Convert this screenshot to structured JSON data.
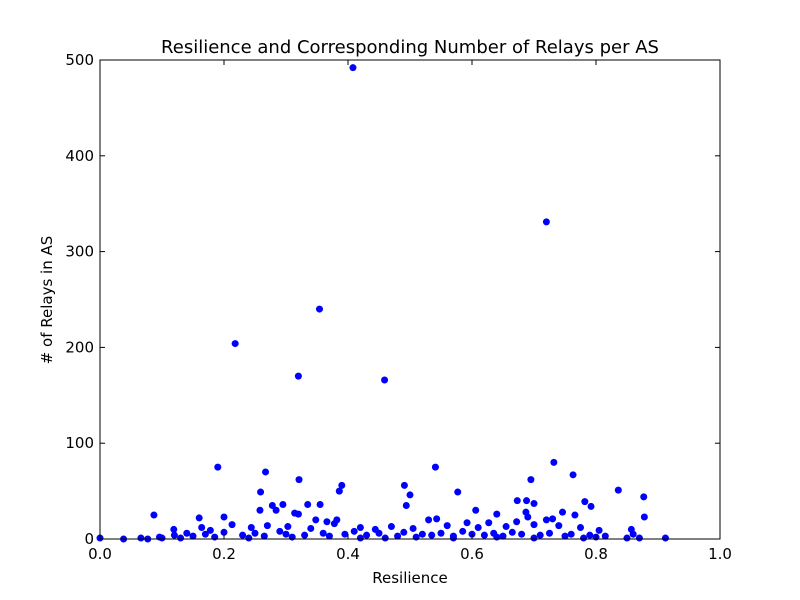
{
  "chart_data": {
    "type": "scatter",
    "title": "Resilience and Corresponding Number of Relays per AS",
    "xlabel": "Resilience",
    "ylabel": "# of Relays in AS",
    "xlim": [
      0.0,
      1.0
    ],
    "ylim": [
      0,
      500
    ],
    "xticks": [
      "0.0",
      "0.2",
      "0.4",
      "0.6",
      "0.8",
      "1.0"
    ],
    "yticks": [
      "0",
      "100",
      "200",
      "300",
      "400",
      "500"
    ],
    "grid": false,
    "marker_color": "#0000ff",
    "series": [
      {
        "points": [
          [
            0.408,
            492
          ],
          [
            0.72,
            331
          ],
          [
            0.354,
            240
          ],
          [
            0.218,
            204
          ],
          [
            0.32,
            170
          ],
          [
            0.459,
            166
          ],
          [
            0.19,
            75
          ],
          [
            0.541,
            75
          ],
          [
            0.732,
            80
          ],
          [
            0.267,
            70
          ],
          [
            0.763,
            67
          ],
          [
            0.321,
            62
          ],
          [
            0.695,
            62
          ],
          [
            0.39,
            56
          ],
          [
            0.491,
            56
          ],
          [
            0.386,
            50
          ],
          [
            0.259,
            49
          ],
          [
            0.577,
            49
          ],
          [
            0.836,
            51
          ],
          [
            0.5,
            46
          ],
          [
            0.877,
            44
          ],
          [
            0.782,
            39
          ],
          [
            0.673,
            40
          ],
          [
            0.688,
            40
          ],
          [
            0.7,
            37
          ],
          [
            0.335,
            36
          ],
          [
            0.355,
            36
          ],
          [
            0.278,
            35
          ],
          [
            0.295,
            36
          ],
          [
            0.494,
            35
          ],
          [
            0.792,
            34
          ],
          [
            0.284,
            30
          ],
          [
            0.606,
            30
          ],
          [
            0.687,
            28
          ],
          [
            0.087,
            25
          ],
          [
            0.2,
            23
          ],
          [
            0.16,
            22
          ],
          [
            0.32,
            26
          ],
          [
            0.314,
            27
          ],
          [
            0.258,
            30
          ],
          [
            0.543,
            21
          ],
          [
            0.53,
            20
          ],
          [
            0.382,
            20
          ],
          [
            0.366,
            18
          ],
          [
            0.348,
            20
          ],
          [
            0.746,
            28
          ],
          [
            0.64,
            26
          ],
          [
            0.766,
            25
          ],
          [
            0.878,
            23
          ],
          [
            0.72,
            20
          ],
          [
            0.69,
            23
          ],
          [
            0.672,
            18
          ],
          [
            0.73,
            21
          ],
          [
            0.592,
            17
          ],
          [
            0.627,
            17
          ],
          [
            0.213,
            15
          ],
          [
            0.164,
            12
          ],
          [
            0.119,
            10
          ],
          [
            0.178,
            9
          ],
          [
            0.244,
            12
          ],
          [
            0.27,
            14
          ],
          [
            0.303,
            13
          ],
          [
            0.34,
            11
          ],
          [
            0.378,
            16
          ],
          [
            0.42,
            12
          ],
          [
            0.444,
            10
          ],
          [
            0.47,
            13
          ],
          [
            0.505,
            11
          ],
          [
            0.56,
            14
          ],
          [
            0.61,
            12
          ],
          [
            0.655,
            13
          ],
          [
            0.7,
            15
          ],
          [
            0.74,
            14
          ],
          [
            0.775,
            12
          ],
          [
            0.805,
            9
          ],
          [
            0.857,
            10
          ],
          [
            0.096,
            2
          ],
          [
            0.12,
            4
          ],
          [
            0.14,
            6
          ],
          [
            0.15,
            3
          ],
          [
            0.17,
            5
          ],
          [
            0.185,
            2
          ],
          [
            0.2,
            7
          ],
          [
            0.23,
            4
          ],
          [
            0.25,
            6
          ],
          [
            0.265,
            3
          ],
          [
            0.29,
            8
          ],
          [
            0.3,
            5
          ],
          [
            0.33,
            4
          ],
          [
            0.36,
            6
          ],
          [
            0.37,
            3
          ],
          [
            0.395,
            5
          ],
          [
            0.41,
            8
          ],
          [
            0.43,
            4
          ],
          [
            0.45,
            6
          ],
          [
            0.48,
            3
          ],
          [
            0.49,
            7
          ],
          [
            0.52,
            5
          ],
          [
            0.535,
            4
          ],
          [
            0.55,
            6
          ],
          [
            0.57,
            3
          ],
          [
            0.585,
            8
          ],
          [
            0.6,
            5
          ],
          [
            0.62,
            4
          ],
          [
            0.635,
            6
          ],
          [
            0.65,
            3
          ],
          [
            0.665,
            7
          ],
          [
            0.68,
            5
          ],
          [
            0.71,
            4
          ],
          [
            0.725,
            6
          ],
          [
            0.75,
            3
          ],
          [
            0.76,
            5
          ],
          [
            0.79,
            4
          ],
          [
            0.8,
            2
          ],
          [
            0.815,
            3
          ],
          [
            0.86,
            5
          ],
          [
            0.0,
            1
          ],
          [
            0.038,
            0
          ],
          [
            0.066,
            1
          ],
          [
            0.077,
            0
          ],
          [
            0.1,
            1
          ],
          [
            0.13,
            1
          ],
          [
            0.24,
            1
          ],
          [
            0.31,
            2
          ],
          [
            0.42,
            1
          ],
          [
            0.46,
            1
          ],
          [
            0.51,
            2
          ],
          [
            0.57,
            1
          ],
          [
            0.64,
            2
          ],
          [
            0.7,
            1
          ],
          [
            0.78,
            1
          ],
          [
            0.85,
            1
          ],
          [
            0.87,
            1
          ],
          [
            0.912,
            1
          ]
        ]
      }
    ]
  }
}
